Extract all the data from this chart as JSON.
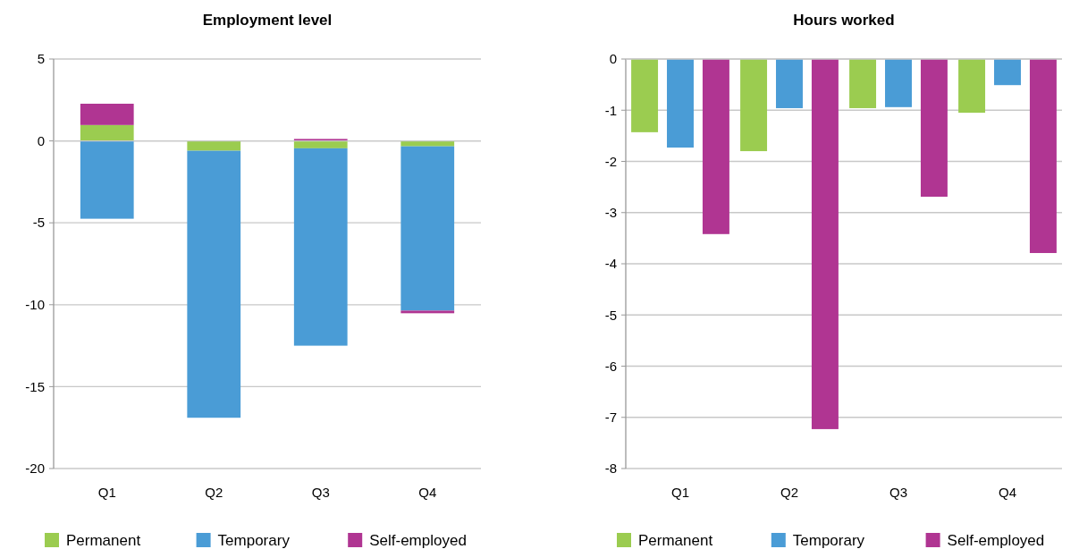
{
  "chart_data": [
    {
      "type": "bar",
      "title": "Employment level",
      "stacked": true,
      "categories": [
        "Q1",
        "Q2",
        "Q3",
        "Q4"
      ],
      "series": [
        {
          "name": "Permanent",
          "color": "#9bcc50",
          "values": [
            0.97,
            -0.6,
            -0.45,
            -0.33
          ]
        },
        {
          "name": "Temporary",
          "color": "#4a9cd6",
          "values": [
            -4.75,
            -16.3,
            -12.05,
            -10.03
          ]
        },
        {
          "name": "Self-employed",
          "color": "#b03592",
          "values": [
            1.3,
            0,
            0.12,
            -0.16
          ]
        }
      ],
      "ylim": [
        -20,
        5
      ],
      "yticks": [
        -20,
        -15,
        -10,
        -5,
        0,
        5
      ],
      "grid": "y",
      "legend": "bottom"
    },
    {
      "type": "bar",
      "title": "Hours worked",
      "categories": [
        "Q1",
        "Q2",
        "Q3",
        "Q4"
      ],
      "series": [
        {
          "name": "Permanent",
          "color": "#9bcc50",
          "values": [
            -1.43,
            -1.8,
            -0.96,
            -1.05
          ]
        },
        {
          "name": "Temporary",
          "color": "#4a9cd6",
          "values": [
            -1.73,
            -0.96,
            -0.94,
            -0.51
          ]
        },
        {
          "name": "Self-employed",
          "color": "#b03592",
          "values": [
            -3.42,
            -7.23,
            -2.69,
            -3.79
          ]
        }
      ],
      "ylim": [
        -8,
        0
      ],
      "yticks": [
        -8,
        -7,
        -6,
        -5,
        -4,
        -3,
        -2,
        -1,
        0
      ],
      "grid": "y",
      "legend": "bottom"
    }
  ]
}
